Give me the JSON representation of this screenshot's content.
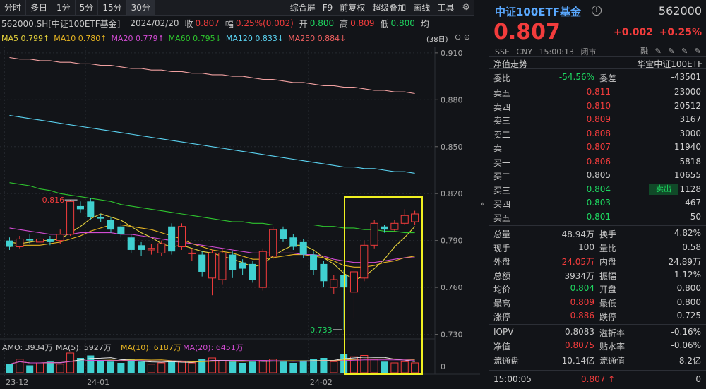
{
  "toolbar": {
    "tabs": [
      "分时",
      "多日",
      "1分",
      "5分",
      "15分",
      "30分"
    ],
    "tabs_active": 5,
    "tools": [
      "综合屏",
      "F9",
      "前复权",
      "超级叠加",
      "画线",
      "工具"
    ]
  },
  "info": {
    "symbol": "562000.SH[中证100ETF基金]",
    "date": "2024/02/20",
    "close_label": "收",
    "close": "0.807",
    "range_label": "幅",
    "range": "0.25%(0.002)",
    "open_label": "开",
    "open": "0.800",
    "high_label": "高",
    "high": "0.809",
    "low_label": "低",
    "low": "0.800",
    "avg_label": "均"
  },
  "ma": {
    "ma5": "MA5 0.799↑",
    "ma10": "MA10 0.780↑",
    "ma20": "MA20 0.779↑",
    "ma60": "MA60 0.795↓",
    "ma120": "MA120 0.833↓",
    "ma250": "MA250 0.884↓",
    "bar_count": "(38日)",
    "colors": {
      "ma5": "#e6d23c",
      "ma10": "#e6b422",
      "ma20": "#d24bd2",
      "ma60": "#2ec42e",
      "ma120": "#5ad2f0",
      "ma250": "#f0a0a0"
    }
  },
  "vol_line": {
    "amo": "AMO: 3934万",
    "ma5": "MA(5): 5927万",
    "ma10": "MA(10): 6187万",
    "ma20": "MA(20): 6451万"
  },
  "chart_data": {
    "type": "candlestick",
    "y_ticks": [
      "0.910",
      "0.880",
      "0.850",
      "0.820",
      "0.790",
      "0.760",
      "0.730"
    ],
    "ylim": [
      0.728,
      0.914
    ],
    "x_labels": [
      {
        "label": "23-12",
        "index": 0
      },
      {
        "label": "24-01",
        "index": 8
      },
      {
        "label": "24-02",
        "index": 30
      }
    ],
    "vol_tick": "0",
    "annotations": {
      "high": "0.816",
      "low": "0.733"
    },
    "candles": [
      [
        0.79,
        0.786,
        0.792,
        0.784
      ],
      [
        0.786,
        0.791,
        0.793,
        0.785
      ],
      [
        0.791,
        0.79,
        0.794,
        0.788
      ],
      [
        0.789,
        0.791,
        0.796,
        0.787
      ],
      [
        0.791,
        0.789,
        0.793,
        0.787
      ],
      [
        0.79,
        0.794,
        0.797,
        0.788
      ],
      [
        0.794,
        0.815,
        0.816,
        0.793
      ],
      [
        0.812,
        0.81,
        0.815,
        0.808
      ],
      [
        0.815,
        0.805,
        0.817,
        0.803
      ],
      [
        0.805,
        0.804,
        0.807,
        0.802
      ],
      [
        0.803,
        0.797,
        0.805,
        0.795
      ],
      [
        0.799,
        0.794,
        0.801,
        0.792
      ],
      [
        0.792,
        0.784,
        0.794,
        0.782
      ],
      [
        0.787,
        0.784,
        0.789,
        0.78
      ],
      [
        0.784,
        0.785,
        0.788,
        0.781
      ],
      [
        0.782,
        0.788,
        0.79,
        0.78
      ],
      [
        0.799,
        0.783,
        0.801,
        0.781
      ],
      [
        0.786,
        0.799,
        0.801,
        0.784
      ],
      [
        0.782,
        0.782,
        0.785,
        0.777
      ],
      [
        0.781,
        0.77,
        0.783,
        0.767
      ],
      [
        0.766,
        0.782,
        0.784,
        0.755
      ],
      [
        0.765,
        0.782,
        0.785,
        0.762
      ],
      [
        0.781,
        0.771,
        0.783,
        0.766
      ],
      [
        0.776,
        0.772,
        0.778,
        0.768
      ],
      [
        0.775,
        0.765,
        0.777,
        0.763
      ],
      [
        0.76,
        0.783,
        0.785,
        0.758
      ],
      [
        0.78,
        0.797,
        0.799,
        0.778
      ],
      [
        0.797,
        0.791,
        0.799,
        0.789
      ],
      [
        0.792,
        0.786,
        0.794,
        0.784
      ],
      [
        0.789,
        0.781,
        0.791,
        0.779
      ],
      [
        0.781,
        0.771,
        0.783,
        0.768
      ],
      [
        0.775,
        0.764,
        0.777,
        0.76
      ],
      [
        0.76,
        0.765,
        0.768,
        0.756
      ],
      [
        0.768,
        0.76,
        0.771,
        0.733
      ],
      [
        0.757,
        0.77,
        0.772,
        0.74
      ],
      [
        0.766,
        0.787,
        0.79,
        0.764
      ],
      [
        0.787,
        0.801,
        0.803,
        0.785
      ],
      [
        0.799,
        0.797,
        0.8,
        0.795
      ],
      [
        0.797,
        0.801,
        0.803,
        0.796
      ],
      [
        0.801,
        0.806,
        0.81,
        0.8
      ],
      [
        0.802,
        0.807,
        0.809,
        0.8
      ]
    ],
    "ma_series": {
      "ma5": [
        0.789,
        0.788,
        0.789,
        0.79,
        0.79,
        0.791,
        0.795,
        0.799,
        0.804,
        0.807,
        0.805,
        0.803,
        0.799,
        0.795,
        0.792,
        0.788,
        0.786,
        0.787,
        0.785,
        0.783,
        0.782,
        0.78,
        0.778,
        0.776,
        0.773,
        0.775,
        0.78,
        0.784,
        0.787,
        0.787,
        0.784,
        0.779,
        0.775,
        0.769,
        0.765,
        0.767,
        0.772,
        0.778,
        0.786,
        0.792,
        0.799
      ],
      "ma10": [
        0.786,
        0.787,
        0.787,
        0.787,
        0.788,
        0.789,
        0.791,
        0.793,
        0.796,
        0.798,
        0.8,
        0.8,
        0.799,
        0.798,
        0.797,
        0.795,
        0.793,
        0.791,
        0.788,
        0.786,
        0.784,
        0.783,
        0.782,
        0.78,
        0.778,
        0.778,
        0.779,
        0.78,
        0.781,
        0.781,
        0.78,
        0.779,
        0.777,
        0.774,
        0.773,
        0.773,
        0.774,
        0.776,
        0.777,
        0.779,
        0.78
      ],
      "ma20": [
        0.798,
        0.797,
        0.796,
        0.795,
        0.794,
        0.794,
        0.794,
        0.795,
        0.795,
        0.795,
        0.795,
        0.794,
        0.794,
        0.793,
        0.792,
        0.791,
        0.79,
        0.789,
        0.788,
        0.787,
        0.786,
        0.785,
        0.784,
        0.783,
        0.782,
        0.782,
        0.782,
        0.782,
        0.782,
        0.781,
        0.781,
        0.78,
        0.778,
        0.777,
        0.776,
        0.776,
        0.776,
        0.777,
        0.778,
        0.779,
        0.779
      ],
      "ma60": [
        0.827,
        0.826,
        0.825,
        0.823,
        0.822,
        0.82,
        0.819,
        0.818,
        0.817,
        0.816,
        0.815,
        0.813,
        0.812,
        0.811,
        0.81,
        0.809,
        0.808,
        0.807,
        0.806,
        0.805,
        0.804,
        0.803,
        0.802,
        0.802,
        0.801,
        0.801,
        0.8,
        0.8,
        0.8,
        0.8,
        0.8,
        0.799,
        0.799,
        0.798,
        0.798,
        0.797,
        0.797,
        0.796,
        0.796,
        0.795,
        0.795
      ],
      "ma120": [
        0.87,
        0.869,
        0.868,
        0.867,
        0.866,
        0.865,
        0.864,
        0.863,
        0.862,
        0.861,
        0.86,
        0.859,
        0.858,
        0.857,
        0.856,
        0.855,
        0.854,
        0.853,
        0.852,
        0.851,
        0.85,
        0.849,
        0.848,
        0.847,
        0.846,
        0.845,
        0.844,
        0.843,
        0.842,
        0.841,
        0.84,
        0.839,
        0.838,
        0.837,
        0.837,
        0.836,
        0.836,
        0.835,
        0.834,
        0.834,
        0.833
      ],
      "ma250": [
        0.907,
        0.906,
        0.906,
        0.905,
        0.905,
        0.904,
        0.904,
        0.903,
        0.903,
        0.902,
        0.902,
        0.901,
        0.9,
        0.9,
        0.899,
        0.899,
        0.898,
        0.898,
        0.897,
        0.897,
        0.896,
        0.896,
        0.895,
        0.895,
        0.894,
        0.893,
        0.893,
        0.892,
        0.891,
        0.891,
        0.89,
        0.889,
        0.889,
        0.888,
        0.888,
        0.887,
        0.886,
        0.886,
        0.885,
        0.885,
        0.884
      ]
    },
    "volumes": [
      35,
      55,
      30,
      40,
      45,
      35,
      80,
      60,
      70,
      50,
      45,
      40,
      55,
      45,
      35,
      40,
      50,
      45,
      40,
      55,
      60,
      50,
      45,
      40,
      45,
      50,
      55,
      45,
      40,
      50,
      55,
      60,
      45,
      75,
      65,
      70,
      55,
      45,
      40,
      45,
      40
    ]
  },
  "highlight_box_color": "#f0f020",
  "panel": {
    "name": "中证100ETF基金",
    "code": "562000",
    "price": "0.807",
    "change": "+0.002",
    "change_pct": "+0.25%",
    "meta": [
      "SSE",
      "CNY",
      "15:00:13",
      "闭市"
    ],
    "meta_icons": "融 ✎ ✎ ✎ ✎",
    "nav_trend": "净值走势",
    "nav_trend_right": "华宝中证100ETF",
    "weibi": {
      "l1": "委比",
      "v1": "-54.56%",
      "l2": "委差",
      "v2": "-43501"
    },
    "sells": [
      {
        "label": "卖五",
        "price": "0.811",
        "vol": "23000"
      },
      {
        "label": "卖四",
        "price": "0.810",
        "vol": "20512"
      },
      {
        "label": "卖三",
        "price": "0.809",
        "vol": "3167"
      },
      {
        "label": "卖二",
        "price": "0.808",
        "vol": "3000"
      },
      {
        "label": "卖一",
        "price": "0.807",
        "vol": "11940"
      }
    ],
    "buys": [
      {
        "label": "买一",
        "price": "0.806",
        "vol": "5818",
        "color": "red"
      },
      {
        "label": "买二",
        "price": "0.805",
        "vol": "10655",
        "color": "white"
      },
      {
        "label": "买三",
        "price": "0.804",
        "vol": "1128",
        "color": "green"
      },
      {
        "label": "买四",
        "price": "0.803",
        "vol": "467",
        "color": "green"
      },
      {
        "label": "买五",
        "price": "0.801",
        "vol": "50",
        "color": "green"
      }
    ],
    "sellout": "卖出",
    "stats": [
      {
        "l1": "总量",
        "v1": "48.94万",
        "c1": "white",
        "l2": "换手",
        "v2": "4.82%",
        "c2": "white"
      },
      {
        "l1": "现手",
        "v1": "100",
        "c1": "white",
        "l2": "量比",
        "v2": "0.58",
        "c2": "white"
      },
      {
        "l1": "外盘",
        "v1": "24.05万",
        "c1": "red",
        "l2": "内盘",
        "v2": "24.89万",
        "c2": "green"
      },
      {
        "l1": "总额",
        "v1": "3934万",
        "c1": "white",
        "l2": "振幅",
        "v2": "1.12%",
        "c2": "white"
      },
      {
        "l1": "均价",
        "v1": "0.804",
        "c1": "green",
        "l2": "开盘",
        "v2": "0.800",
        "c2": "green"
      },
      {
        "l1": "最高",
        "v1": "0.809",
        "c1": "red",
        "l2": "最低",
        "v2": "0.800",
        "c2": "green"
      },
      {
        "l1": "涨停",
        "v1": "0.886",
        "c1": "red",
        "l2": "跌停",
        "v2": "0.725",
        "c2": "green"
      }
    ],
    "stats2": [
      {
        "l1": "IOPV",
        "v1": "0.8083",
        "c1": "white",
        "l2": "溢折率",
        "v2": "-0.16%",
        "c2": "green"
      },
      {
        "l1": "净值",
        "v1": "0.8075",
        "c1": "red",
        "l2": "贴水率",
        "v2": "-0.06%",
        "c2": "green"
      },
      {
        "l1": "流通盘",
        "v1": "10.14亿",
        "c1": "white",
        "l2": "流通值",
        "v2": "8.2亿",
        "c2": "white"
      }
    ],
    "status": {
      "time": "15:00:05",
      "price": "0.807 ↑",
      "vol": "0"
    }
  }
}
